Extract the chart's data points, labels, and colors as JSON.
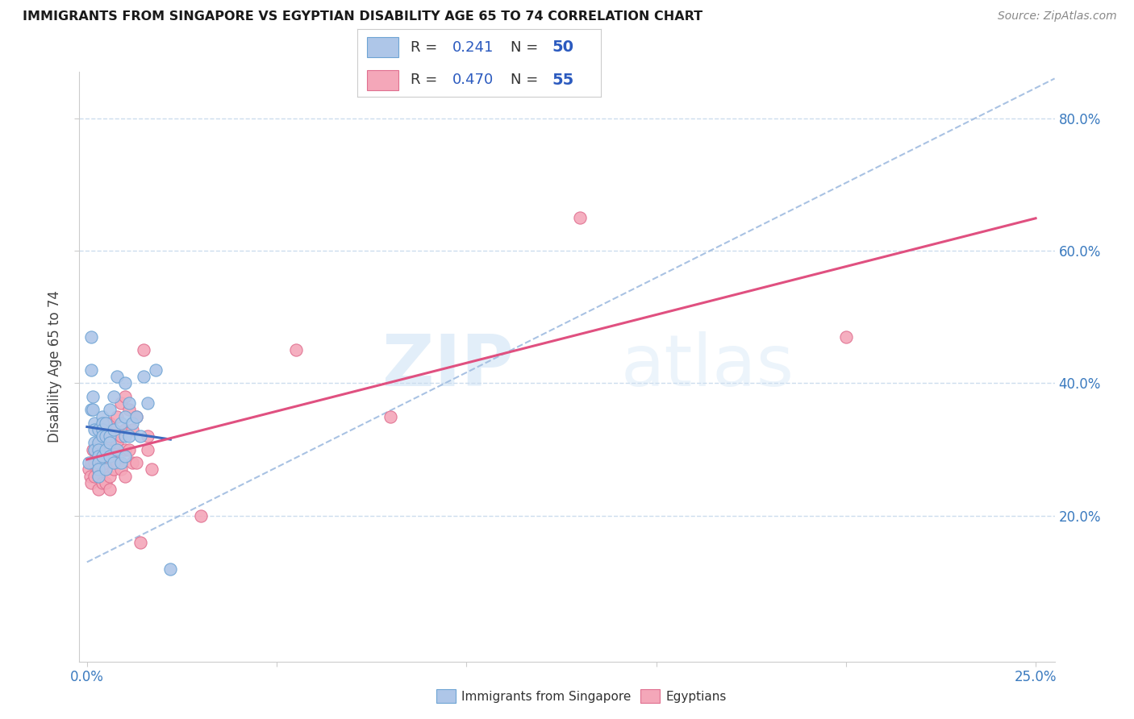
{
  "title": "IMMIGRANTS FROM SINGAPORE VS EGYPTIAN DISABILITY AGE 65 TO 74 CORRELATION CHART",
  "source": "Source: ZipAtlas.com",
  "ylabel": "Disability Age 65 to 74",
  "xlim": [
    -0.002,
    0.255
  ],
  "ylim": [
    -0.02,
    0.87
  ],
  "xticks": [
    0.0,
    0.05,
    0.1,
    0.15,
    0.2,
    0.25
  ],
  "xtick_labels": [
    "0.0%",
    "",
    "",
    "",
    "",
    "25.0%"
  ],
  "ytick_vals": [
    0.2,
    0.4,
    0.6,
    0.8
  ],
  "ytick_labels": [
    "20.0%",
    "40.0%",
    "60.0%",
    "80.0%"
  ],
  "singapore_color": "#aec6e8",
  "singapore_edge": "#6ea4d4",
  "egyptian_color": "#f4a7b9",
  "egyptian_edge": "#e07090",
  "singapore_R": "0.241",
  "singapore_N": "50",
  "egyptian_R": "0.470",
  "egyptian_N": "55",
  "trend_singapore_color": "#3a6abf",
  "trend_egyptian_color": "#e05080",
  "diagonal_color": "#a0bce0",
  "watermark_zip": "ZIP",
  "watermark_atlas": "atlas",
  "legend_blue": "#2b5abf",
  "singapore_x": [
    0.0005,
    0.001,
    0.001,
    0.001,
    0.0015,
    0.0015,
    0.002,
    0.002,
    0.002,
    0.002,
    0.003,
    0.003,
    0.003,
    0.003,
    0.003,
    0.003,
    0.003,
    0.004,
    0.004,
    0.004,
    0.004,
    0.004,
    0.005,
    0.005,
    0.005,
    0.005,
    0.006,
    0.006,
    0.006,
    0.006,
    0.007,
    0.007,
    0.007,
    0.008,
    0.008,
    0.009,
    0.009,
    0.01,
    0.01,
    0.01,
    0.01,
    0.011,
    0.011,
    0.012,
    0.013,
    0.014,
    0.015,
    0.016,
    0.018,
    0.022
  ],
  "singapore_y": [
    0.28,
    0.47,
    0.42,
    0.36,
    0.38,
    0.36,
    0.34,
    0.33,
    0.31,
    0.3,
    0.33,
    0.31,
    0.3,
    0.29,
    0.28,
    0.27,
    0.26,
    0.35,
    0.34,
    0.33,
    0.32,
    0.29,
    0.34,
    0.32,
    0.3,
    0.27,
    0.36,
    0.32,
    0.31,
    0.29,
    0.38,
    0.33,
    0.28,
    0.41,
    0.3,
    0.34,
    0.28,
    0.4,
    0.35,
    0.32,
    0.29,
    0.37,
    0.32,
    0.34,
    0.35,
    0.32,
    0.41,
    0.37,
    0.42,
    0.12
  ],
  "egyptian_x": [
    0.0005,
    0.0008,
    0.001,
    0.001,
    0.0015,
    0.002,
    0.002,
    0.002,
    0.003,
    0.003,
    0.003,
    0.003,
    0.003,
    0.004,
    0.004,
    0.004,
    0.004,
    0.005,
    0.005,
    0.005,
    0.005,
    0.006,
    0.006,
    0.006,
    0.006,
    0.006,
    0.007,
    0.007,
    0.007,
    0.008,
    0.008,
    0.008,
    0.009,
    0.009,
    0.009,
    0.01,
    0.01,
    0.01,
    0.01,
    0.011,
    0.011,
    0.012,
    0.012,
    0.013,
    0.013,
    0.014,
    0.015,
    0.016,
    0.017,
    0.016,
    0.03,
    0.055,
    0.08,
    0.13,
    0.2
  ],
  "egyptian_y": [
    0.27,
    0.26,
    0.28,
    0.25,
    0.3,
    0.3,
    0.28,
    0.26,
    0.31,
    0.29,
    0.27,
    0.26,
    0.24,
    0.32,
    0.29,
    0.27,
    0.25,
    0.34,
    0.31,
    0.28,
    0.25,
    0.34,
    0.31,
    0.29,
    0.26,
    0.24,
    0.33,
    0.3,
    0.27,
    0.35,
    0.31,
    0.28,
    0.37,
    0.32,
    0.27,
    0.38,
    0.33,
    0.3,
    0.26,
    0.36,
    0.3,
    0.33,
    0.28,
    0.35,
    0.28,
    0.16,
    0.45,
    0.3,
    0.27,
    0.32,
    0.2,
    0.45,
    0.35,
    0.65,
    0.47
  ]
}
